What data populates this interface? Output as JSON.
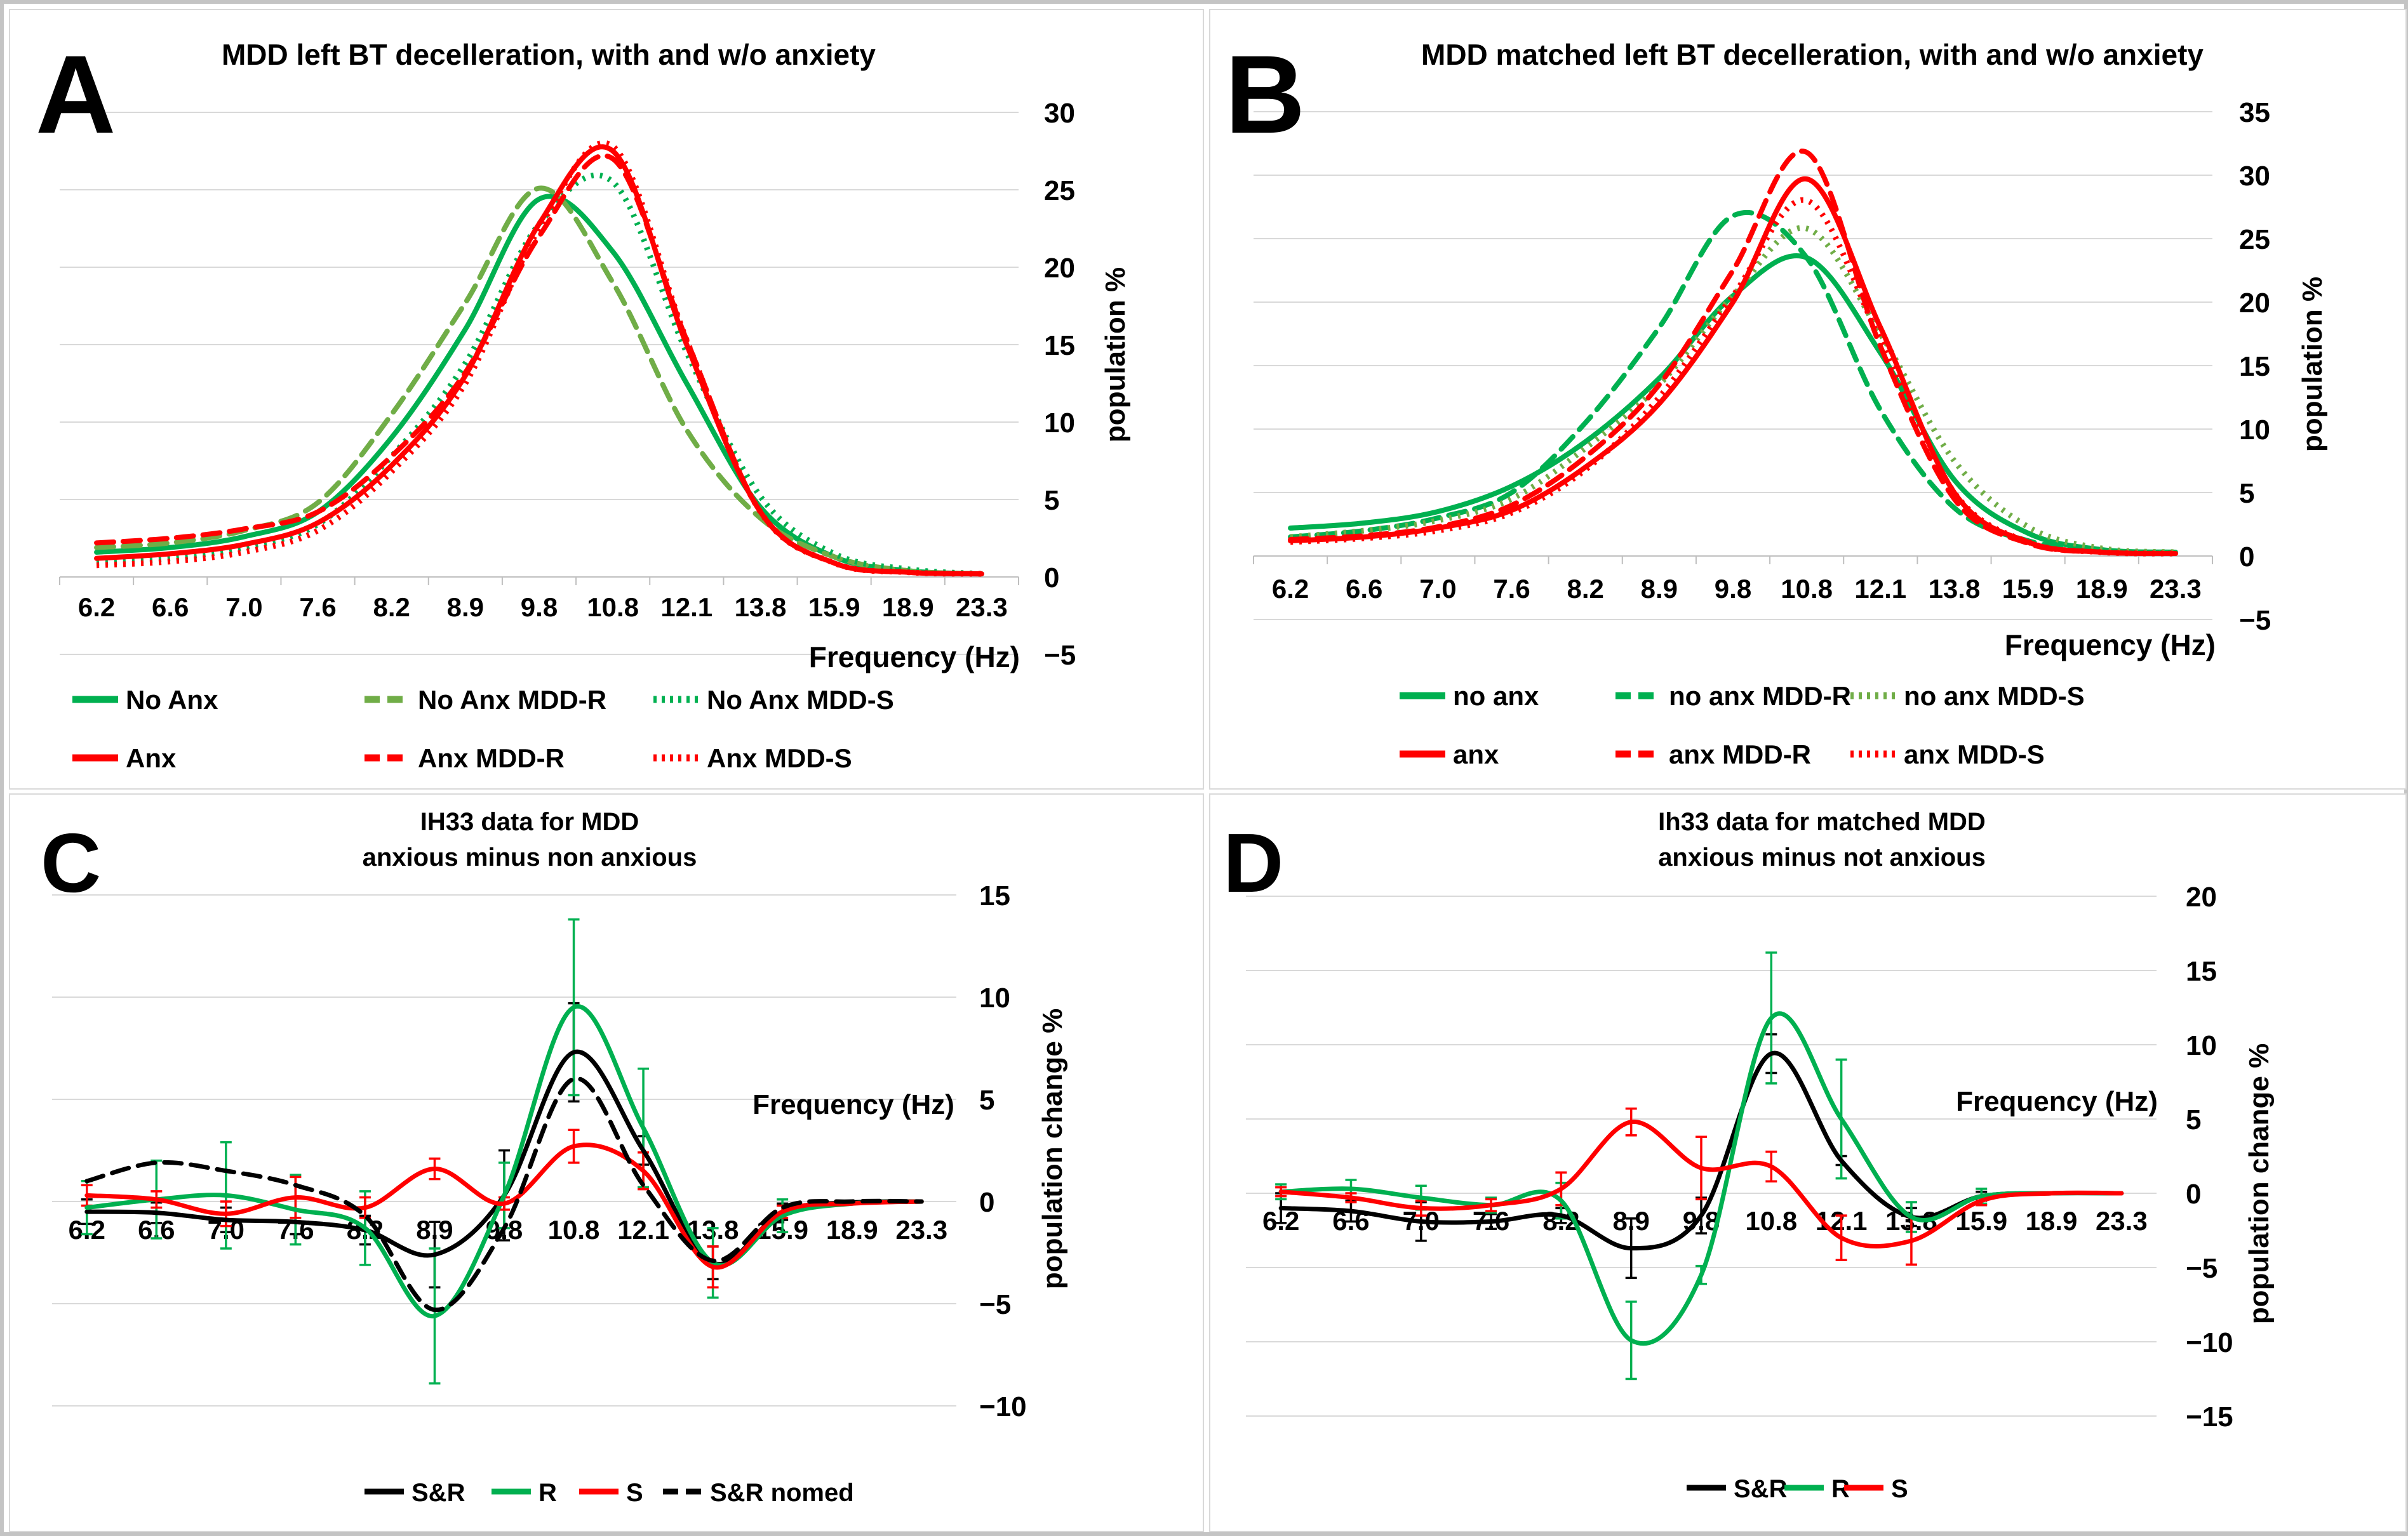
{
  "figure": {
    "background": "#ffffff",
    "frame_color": "#c4c4c4",
    "panel_border_color": "#d9d9d9",
    "grid_color": "#d9d9d9",
    "axis_color": "#bfbfbf",
    "text_color": "#000000"
  },
  "chart_data": [
    {
      "id": "A",
      "letter": "A",
      "type": "line",
      "title": "MDD left BT decelleration, with and w/o anxiety",
      "title_lines": [
        "MDD left BT decelleration, with and w/o anxiety"
      ],
      "xlabel": "Frequency (Hz)",
      "ylabel": "population %",
      "categories": [
        "6.2",
        "6.6",
        "7.0",
        "7.6",
        "8.2",
        "8.9",
        "9.8",
        "10.8",
        "12.1",
        "13.8",
        "15.9",
        "18.9",
        "23.3"
      ],
      "ylim": [
        -5,
        30
      ],
      "ytick_step": 5,
      "yticks": [
        "30",
        "25",
        "20",
        "15",
        "10",
        "5",
        "0",
        "−5"
      ],
      "grid": true,
      "legend_position": "bottom",
      "legend_rows": [
        [
          "No Anx",
          "No Anx MDD-R",
          "No Anx MDD-S"
        ],
        [
          "Anx",
          "Anx MDD-R",
          "Anx MDD-S"
        ]
      ],
      "series": [
        {
          "name": "No Anx",
          "color": "#00B050",
          "style": "solid",
          "values": [
            1.6,
            1.9,
            2.6,
            4.2,
            9.0,
            16.0,
            24.4,
            21.0,
            12.5,
            4.5,
            1.3,
            0.4,
            0.2
          ]
        },
        {
          "name": "No Anx MDD-R",
          "color": "#70AD47",
          "style": "dashed",
          "values": [
            1.9,
            2.2,
            3.0,
            4.8,
            10.5,
            17.7,
            25.1,
            19.0,
            9.5,
            3.8,
            1.3,
            0.4,
            0.2
          ]
        },
        {
          "name": "No Anx MDD-S",
          "color": "#00B050",
          "style": "dotted",
          "values": [
            0.9,
            1.2,
            1.9,
            3.4,
            7.8,
            13.8,
            22.8,
            25.5,
            14.5,
            5.2,
            1.5,
            0.5,
            0.2
          ]
        },
        {
          "name": "Anx",
          "color": "#FF0000",
          "style": "solid",
          "values": [
            1.2,
            1.5,
            2.1,
            3.5,
            7.2,
            13.0,
            22.8,
            27.5,
            15.0,
            4.2,
            0.9,
            0.3,
            0.2
          ]
        },
        {
          "name": "Anx MDD-R",
          "color": "#FF0000",
          "style": "dashed",
          "values": [
            2.2,
            2.5,
            3.1,
            4.2,
            7.8,
            13.2,
            22.0,
            27.0,
            15.3,
            4.2,
            0.9,
            0.3,
            0.2
          ]
        },
        {
          "name": "Anx MDD-S",
          "color": "#FF0000",
          "style": "dotted",
          "values": [
            0.75,
            1.0,
            1.6,
            3.0,
            6.8,
            12.5,
            22.5,
            27.8,
            15.3,
            4.2,
            0.9,
            0.3,
            0.2
          ]
        }
      ]
    },
    {
      "id": "B",
      "letter": "B",
      "type": "line",
      "title": "MDD matched left BT decelleration, with and w/o anxiety",
      "title_lines": [
        "MDD matched left BT decelleration, with and w/o anxiety"
      ],
      "xlabel": "Frequency (Hz)",
      "ylabel": "population %",
      "categories": [
        "6.2",
        "6.6",
        "7.0",
        "7.6",
        "8.2",
        "8.9",
        "9.8",
        "10.8",
        "12.1",
        "13.8",
        "15.9",
        "18.9",
        "23.3"
      ],
      "ylim": [
        -5,
        35
      ],
      "ytick_step": 5,
      "yticks": [
        "35",
        "30",
        "25",
        "20",
        "15",
        "10",
        "5",
        "0",
        "−5"
      ],
      "grid": true,
      "legend_position": "bottom",
      "legend_rows": [
        [
          "no anx",
          "no anx MDD-R",
          "no anx MDD-S"
        ],
        [
          "anx",
          "anx MDD-R",
          "anx MDD-S"
        ]
      ],
      "series": [
        {
          "name": "no anx",
          "color": "#00B050",
          "style": "solid",
          "values": [
            2.2,
            2.6,
            3.5,
            5.5,
            9.0,
            14.0,
            20.5,
            23.5,
            16.0,
            6.0,
            1.8,
            0.5,
            0.3
          ]
        },
        {
          "name": "no anx MDD-R",
          "color": "#00B050",
          "style": "dashed",
          "values": [
            1.5,
            2.0,
            3.0,
            5.0,
            10.5,
            18.0,
            26.8,
            23.5,
            11.5,
            3.8,
            1.2,
            0.4,
            0.2
          ]
        },
        {
          "name": "no anx MDD-S",
          "color": "#70AD47",
          "style": "dotted",
          "values": [
            1.5,
            2.0,
            2.8,
            4.5,
            8.5,
            13.5,
            20.5,
            25.8,
            17.5,
            7.5,
            2.3,
            0.6,
            0.3
          ]
        },
        {
          "name": "anx",
          "color": "#FF0000",
          "style": "solid",
          "values": [
            1.2,
            1.5,
            2.2,
            3.6,
            7.0,
            12.0,
            20.0,
            29.7,
            18.0,
            5.0,
            1.1,
            0.3,
            0.2
          ]
        },
        {
          "name": "anx MDD-R",
          "color": "#FF0000",
          "style": "dashed",
          "values": [
            1.3,
            1.6,
            2.3,
            4.0,
            7.8,
            13.5,
            22.5,
            31.8,
            16.5,
            4.5,
            1.0,
            0.3,
            0.2
          ]
        },
        {
          "name": "anx MDD-S",
          "color": "#FF0000",
          "style": "dotted",
          "values": [
            1.1,
            1.4,
            2.0,
            3.4,
            6.8,
            12.5,
            20.5,
            28.0,
            17.0,
            5.0,
            1.1,
            0.3,
            0.2
          ]
        }
      ]
    },
    {
      "id": "C",
      "letter": "C",
      "type": "line",
      "title": "IH33 data for MDD anxious minus non anxious",
      "title_lines": [
        "IH33 data for MDD",
        "anxious minus non anxious"
      ],
      "xlabel": "Frequency (Hz)",
      "ylabel": "population change %",
      "categories": [
        "6.2",
        "6.6",
        "7.0",
        "7.6",
        "8.2",
        "8.9",
        "9.8",
        "10.8",
        "12.1",
        "13.8",
        "15.9",
        "18.9",
        "23.3"
      ],
      "ylim": [
        -10,
        15
      ],
      "ytick_step": 5,
      "yticks": [
        "15",
        "10",
        "5",
        "0",
        "−5",
        "−10"
      ],
      "grid": true,
      "legend_position": "bottom",
      "legend_rows": [
        [
          "S&R",
          "R",
          "S",
          "S&R nomed"
        ]
      ],
      "series": [
        {
          "name": "S&R",
          "color": "#000000",
          "style": "solid",
          "values": [
            -0.5,
            -0.55,
            -0.9,
            -1.0,
            -1.4,
            -2.6,
            0.3,
            7.3,
            2.5,
            -3.0,
            -0.5,
            -0.05,
            0
          ],
          "errors": [
            0.6,
            0.5,
            0.6,
            0.6,
            0.7,
            1.6,
            2.2,
            2.4,
            0.7,
            0.8,
            0.4,
            0,
            0
          ]
        },
        {
          "name": "R",
          "color": "#00B050",
          "style": "solid",
          "values": [
            -0.3,
            0.1,
            0.3,
            -0.4,
            -1.3,
            -5.6,
            0.3,
            9.5,
            3.6,
            -3.0,
            -0.7,
            -0.1,
            0
          ],
          "errors": [
            1.3,
            1.9,
            2.6,
            1.7,
            1.8,
            3.3,
            1.6,
            4.3,
            2.9,
            1.7,
            0.8,
            0,
            0
          ]
        },
        {
          "name": "S",
          "color": "#FF0000",
          "style": "solid",
          "values": [
            0.3,
            0.1,
            -0.6,
            0.2,
            -0.3,
            1.6,
            -0.1,
            2.7,
            1.5,
            -3.2,
            -0.5,
            -0.1,
            0
          ],
          "errors": [
            0.5,
            0.4,
            0.6,
            1.0,
            0.5,
            0.5,
            0.3,
            0.8,
            0.9,
            1.0,
            0.3,
            0,
            0
          ]
        },
        {
          "name": "S&R nomed",
          "color": "#000000",
          "style": "dashed",
          "values": [
            1.0,
            1.9,
            1.5,
            0.8,
            -0.7,
            -5.3,
            -1.3,
            6.0,
            0.8,
            -2.9,
            -0.3,
            0,
            0
          ]
        }
      ]
    },
    {
      "id": "D",
      "letter": "D",
      "type": "line",
      "title": "Ih33 data for matched MDD anxious minus not anxious",
      "title_lines": [
        "Ih33 data for matched MDD",
        "anxious minus not anxious"
      ],
      "xlabel": "Frequency (Hz)",
      "ylabel": "population change %",
      "categories": [
        "6.2",
        "6.6",
        "7.0",
        "7.6",
        "8.2",
        "8.9",
        "9.8",
        "10.8",
        "12.1",
        "13.8",
        "15.9",
        "18.9",
        "23.3"
      ],
      "ylim": [
        -15,
        20
      ],
      "ytick_step": 5,
      "yticks": [
        "20",
        "15",
        "10",
        "5",
        "0",
        "−5",
        "−10",
        "−15"
      ],
      "grid": true,
      "legend_position": "bottom",
      "legend_rows": [
        [
          "S&R",
          "R",
          "S"
        ]
      ],
      "series": [
        {
          "name": "S&R",
          "color": "#000000",
          "style": "solid",
          "values": [
            -1.0,
            -1.2,
            -1.9,
            -1.9,
            -1.5,
            -3.7,
            -1.5,
            9.4,
            2.2,
            -1.6,
            -0.2,
            0,
            0
          ],
          "errors": [
            1.0,
            0.7,
            1.3,
            0.5,
            0.5,
            2.0,
            1.2,
            1.3,
            0.3,
            0.6,
            0.3,
            0,
            0
          ]
        },
        {
          "name": "R",
          "color": "#00B050",
          "style": "solid",
          "values": [
            0.1,
            0.3,
            -0.3,
            -0.8,
            -0.5,
            -9.9,
            -5.5,
            11.8,
            5.0,
            -1.6,
            -0.2,
            0,
            0
          ],
          "errors": [
            0.5,
            0.6,
            0.8,
            0.5,
            1.2,
            2.6,
            0.6,
            4.4,
            4.0,
            1.0,
            0.5,
            0,
            0
          ]
        },
        {
          "name": "S",
          "color": "#FF0000",
          "style": "solid",
          "values": [
            0.1,
            -0.3,
            -1.0,
            -0.8,
            0.3,
            4.8,
            1.7,
            1.8,
            -3.0,
            -3.2,
            -0.5,
            0,
            0
          ],
          "errors": [
            0.3,
            0.3,
            0.5,
            0.4,
            1.1,
            0.9,
            2.1,
            1.0,
            1.5,
            1.6,
            0.3,
            0,
            0
          ]
        }
      ]
    }
  ]
}
